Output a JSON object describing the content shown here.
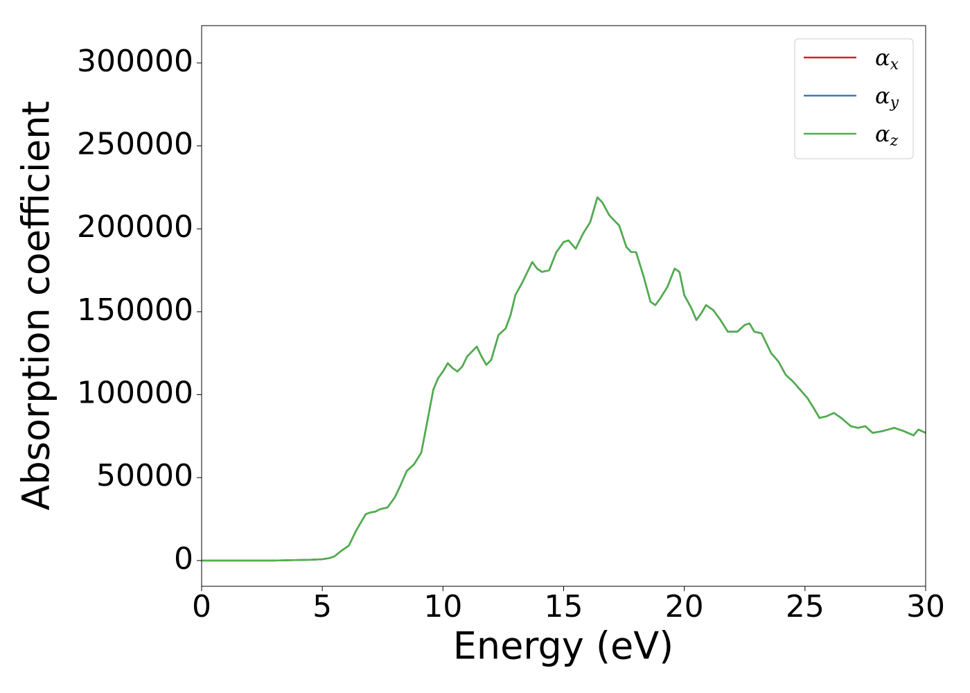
{
  "chart_data": {
    "type": "line",
    "xlabel": "Energy (eV)",
    "ylabel": "Absorption coefficient",
    "x": [
      0,
      1,
      2,
      3,
      4,
      4.5,
      5,
      5.3,
      5.5,
      5.8,
      6.1,
      6.4,
      6.8,
      7.0,
      7.2,
      7.4,
      7.7,
      8.0,
      8.2,
      8.5,
      8.8,
      9.1,
      9.3,
      9.6,
      9.8,
      10.0,
      10.2,
      10.4,
      10.6,
      10.8,
      11.0,
      11.4,
      11.6,
      11.8,
      12.0,
      12.3,
      12.6,
      12.8,
      13.0,
      13.3,
      13.6,
      13.7,
      13.9,
      14.1,
      14.4,
      14.7,
      15.0,
      15.2,
      15.5,
      15.8,
      16.1,
      16.4,
      16.6,
      16.9,
      17.3,
      17.6,
      17.8,
      18.0,
      18.3,
      18.6,
      18.8,
      19.0,
      19.3,
      19.6,
      19.8,
      20.0,
      20.3,
      20.5,
      20.7,
      20.9,
      21.2,
      21.5,
      21.8,
      22.2,
      22.5,
      22.7,
      22.9,
      23.2,
      23.6,
      23.9,
      24.2,
      24.5,
      24.8,
      25.1,
      25.4,
      25.6,
      25.9,
      26.2,
      26.5,
      26.9,
      27.2,
      27.5,
      27.8,
      28.2,
      28.7,
      29.1,
      29.5,
      29.7,
      30.0
    ],
    "series": [
      {
        "name": "αx",
        "color": "#e41a1c",
        "values": [
          0,
          0,
          0,
          0,
          300,
          500,
          800,
          1500,
          2500,
          6000,
          9000,
          18000,
          28000,
          29000,
          29500,
          31000,
          32000,
          38000,
          44000,
          54000,
          58000,
          65000,
          80000,
          103000,
          110000,
          114000,
          119000,
          116000,
          114000,
          117000,
          123000,
          129000,
          123000,
          118000,
          121000,
          136000,
          140000,
          148000,
          160000,
          168000,
          177000,
          180000,
          176000,
          174000,
          175000,
          186000,
          192000,
          193000,
          188000,
          197000,
          204000,
          219000,
          216000,
          208000,
          202000,
          189000,
          186000,
          186000,
          172000,
          156000,
          154000,
          158000,
          165000,
          176000,
          174000,
          160000,
          152000,
          145000,
          149000,
          154000,
          151000,
          145000,
          138000,
          138000,
          142000,
          143000,
          138000,
          137000,
          125000,
          120000,
          112000,
          108000,
          103000,
          98000,
          91000,
          86000,
          87000,
          89000,
          86000,
          81000,
          80000,
          81000,
          77000,
          78000,
          80000,
          78000,
          75500,
          79000,
          77000
        ]
      },
      {
        "name": "αy",
        "color": "#377eb8",
        "values": [
          0,
          0,
          0,
          0,
          300,
          500,
          800,
          1500,
          2500,
          6000,
          9000,
          18000,
          28000,
          29000,
          29500,
          31000,
          32000,
          38000,
          44000,
          54000,
          58000,
          65000,
          80000,
          103000,
          110000,
          114000,
          119000,
          116000,
          114000,
          117000,
          123000,
          129000,
          123000,
          118000,
          121000,
          136000,
          140000,
          148000,
          160000,
          168000,
          177000,
          180000,
          176000,
          174000,
          175000,
          186000,
          192000,
          193000,
          188000,
          197000,
          204000,
          219000,
          216000,
          208000,
          202000,
          189000,
          186000,
          186000,
          172000,
          156000,
          154000,
          158000,
          165000,
          176000,
          174000,
          160000,
          152000,
          145000,
          149000,
          154000,
          151000,
          145000,
          138000,
          138000,
          142000,
          143000,
          138000,
          137000,
          125000,
          120000,
          112000,
          108000,
          103000,
          98000,
          91000,
          86000,
          87000,
          89000,
          86000,
          81000,
          80000,
          81000,
          77000,
          78000,
          80000,
          78000,
          75500,
          79000,
          77000
        ]
      },
      {
        "name": "αz",
        "color": "#4daf4a",
        "values": [
          0,
          0,
          0,
          0,
          300,
          500,
          800,
          1500,
          2500,
          6000,
          9000,
          18000,
          28000,
          29000,
          29500,
          31000,
          32000,
          38000,
          44000,
          54000,
          58000,
          65000,
          80000,
          103000,
          110000,
          114000,
          119000,
          116000,
          114000,
          117000,
          123000,
          129000,
          123000,
          118000,
          121000,
          136000,
          140000,
          148000,
          160000,
          168000,
          177000,
          180000,
          176000,
          174000,
          175000,
          186000,
          192000,
          193000,
          188000,
          197000,
          204000,
          219000,
          216000,
          208000,
          202000,
          189000,
          186000,
          186000,
          172000,
          156000,
          154000,
          158000,
          165000,
          176000,
          174000,
          160000,
          152000,
          145000,
          149000,
          154000,
          151000,
          145000,
          138000,
          138000,
          142000,
          143000,
          138000,
          137000,
          125000,
          120000,
          112000,
          108000,
          103000,
          98000,
          91000,
          86000,
          87000,
          89000,
          86000,
          81000,
          80000,
          81000,
          77000,
          78000,
          80000,
          78000,
          75500,
          79000,
          77000
        ]
      }
    ],
    "xlim": [
      0,
      30
    ],
    "xticks": [
      0,
      5,
      10,
      15,
      20,
      25,
      30
    ],
    "ylim": [
      -15500,
      322500
    ],
    "yticks": [
      0,
      50000,
      100000,
      150000,
      200000,
      250000,
      300000
    ],
    "grid": false,
    "legend": "upper right"
  }
}
